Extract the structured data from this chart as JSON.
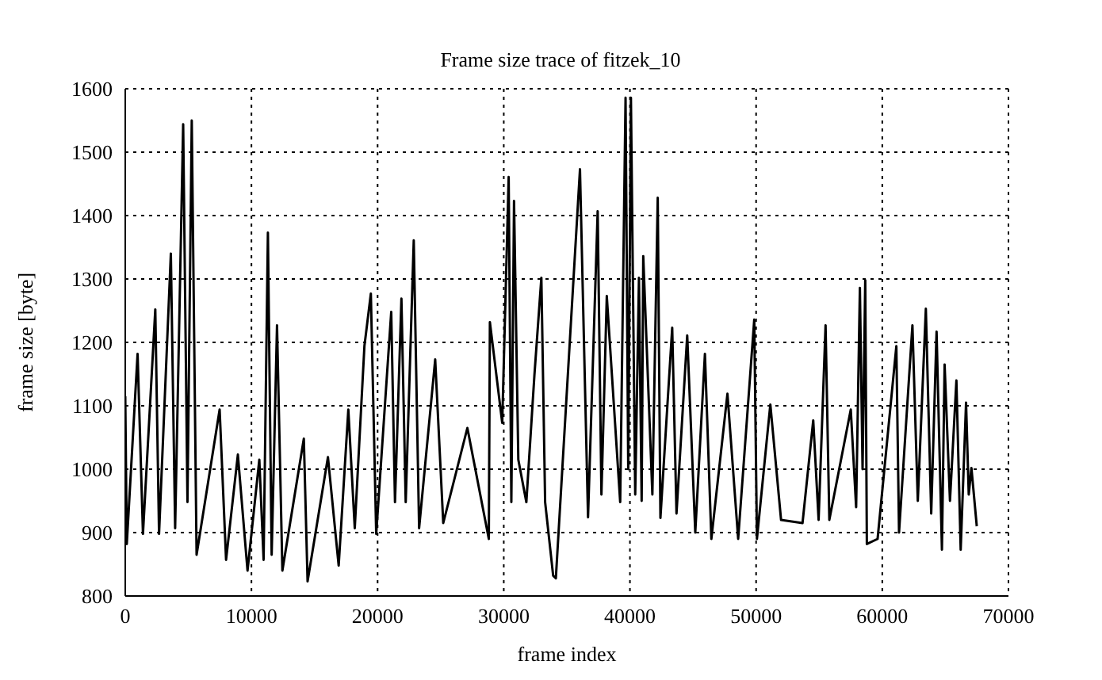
{
  "chart_data": {
    "type": "line",
    "title": "Frame size trace of fitzek_10",
    "xlabel": "frame index",
    "ylabel": "frame size [byte]",
    "xlim": [
      0,
      70000
    ],
    "xticks": [
      0,
      10000,
      20000,
      30000,
      40000,
      50000,
      60000,
      70000
    ],
    "ylim": [
      800,
      1600
    ],
    "yticks": [
      800,
      900,
      1000,
      1100,
      1200,
      1300,
      1400,
      1500,
      1600
    ],
    "grid": true,
    "marker": "none",
    "line_style": "solid",
    "series": [
      {
        "color": "#000000",
        "x": [
          0,
          120,
          977,
          1403,
          2380,
          2678,
          3613,
          3953,
          4590,
          4930,
          5270,
          5653,
          7480,
          7990,
          8925,
          9690,
          10625,
          10965,
          11305,
          11603,
          12028,
          12453,
          14153,
          14450,
          16065,
          16915,
          17680,
          18190,
          18955,
          19465,
          19890,
          21080,
          21378,
          21888,
          22228,
          22865,
          23290,
          24565,
          25203,
          27115,
          28815,
          28900,
          29878,
          30388,
          30600,
          30813,
          31153,
          31790,
          32428,
          32980,
          33278,
          33915,
          34128,
          36040,
          36678,
          37443,
          37740,
          38165,
          39228,
          39653,
          39865,
          40078,
          40418,
          40715,
          40928,
          41055,
          41778,
          42203,
          42415,
          43350,
          43690,
          44540,
          45178,
          45943,
          46453,
          47728,
          48578,
          49853,
          50065,
          51128,
          51978,
          53678,
          54528,
          54953,
          55505,
          55803,
          57503,
          57928,
          58225,
          58438,
          58650,
          58778,
          59628,
          61115,
          61328,
          62390,
          62815,
          63453,
          63878,
          64303,
          64728,
          64940,
          65365,
          65875,
          66215,
          66640,
          66853,
          67065,
          67490
        ],
        "values": [
          1115,
          882,
          1182,
          898,
          1252,
          898,
          1340,
          907,
          1544,
          948,
          1550,
          865,
          1094,
          857,
          1023,
          840,
          1015,
          857,
          1373,
          865,
          1227,
          840,
          1048,
          823,
          1019,
          848,
          1094,
          907,
          1194,
          1277,
          898,
          1248,
          948,
          1269,
          948,
          1361,
          907,
          1173,
          915,
          1065,
          890,
          1232,
          1073,
          1461,
          948,
          1423,
          1015,
          948,
          1148,
          1302,
          948,
          832,
          828,
          1473,
          924,
          1407,
          960,
          1273,
          948,
          1586,
          1000,
          1586,
          960,
          1302,
          950,
          1336,
          960,
          1428,
          923,
          1223,
          930,
          1211,
          900,
          1182,
          890,
          1119,
          890,
          1236,
          890,
          1102,
          920,
          915,
          1077,
          920,
          1227,
          920,
          1094,
          940,
          1286,
          1000,
          1298,
          882,
          890,
          1194,
          900,
          1227,
          950,
          1253,
          930,
          1217,
          873,
          1165,
          950,
          1140,
          873,
          1105,
          960,
          1002,
          910
        ]
      }
    ]
  }
}
